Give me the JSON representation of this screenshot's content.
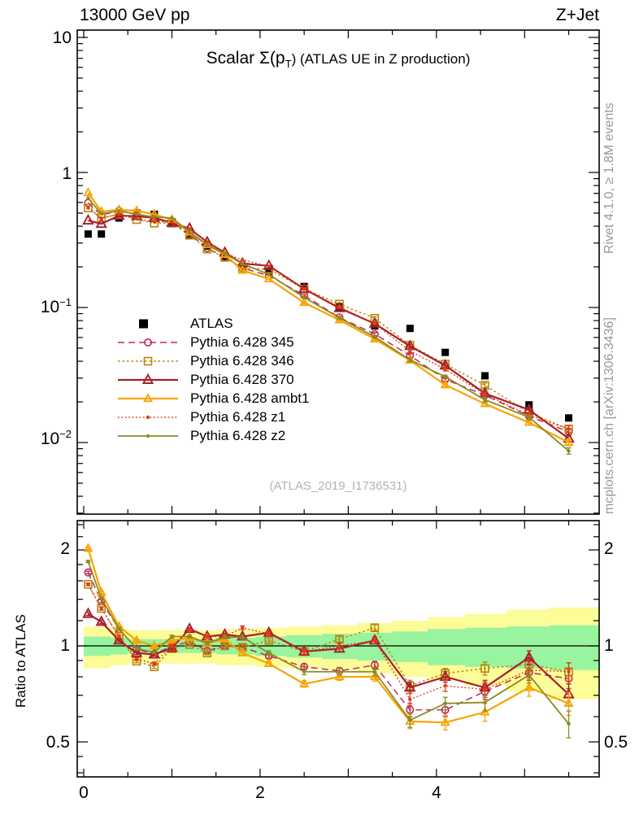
{
  "header": {
    "left": "13000 GeV pp",
    "right": "Z+Jet"
  },
  "title": {
    "prefix": "Scalar Σ(p",
    "sub": "T",
    "suffix": ") (ATLAS UE in Z production)"
  },
  "watermark": "(ATLAS_2019_I1736531)",
  "side_notes": {
    "top": "Rivet 4.1.0, ≥ 1.8M events",
    "bottom": "mcplots.cern.ch [arXiv:1306.3436]"
  },
  "ratio_ylabel": "Ratio to ATLAS",
  "axes": {
    "main_y_ticks": [
      {
        "base": "10",
        "exp": ""
      },
      {
        "base": "1",
        "exp": ""
      },
      {
        "base": "10",
        "exp": "−1"
      },
      {
        "base": "10",
        "exp": "−2"
      }
    ],
    "ratio_y_ticks": {
      "t2": "2",
      "t1": "1",
      "t05": "0.5"
    },
    "x_ticks": {
      "t0": "0",
      "t2": "2",
      "t4": "4"
    }
  },
  "colors": {
    "frame": "#000000",
    "band_green": "#98f49e",
    "band_yellow": "#fcfc98",
    "atlas": "#000000"
  },
  "chart_data": {
    "type": "line",
    "title": "Scalar Σ(p_T) (ATLAS UE in Z production)",
    "xlabel": "",
    "ylabel": "",
    "x_range": [
      0,
      5.84
    ],
    "main_y_log_range": [
      0.003,
      11.3
    ],
    "ratio_y_log_range": [
      0.39,
      2.47
    ],
    "x": [
      0.05,
      0.2,
      0.4,
      0.6,
      0.8,
      1.0,
      1.2,
      1.4,
      1.6,
      1.8,
      2.1,
      2.5,
      2.9,
      3.3,
      3.7,
      4.1,
      4.55,
      5.05,
      5.5
    ],
    "atlas": {
      "name": "ATLAS",
      "values": [
        0.35,
        0.35,
        0.46,
        0.5,
        0.49,
        0.43,
        0.34,
        0.285,
        0.235,
        0.198,
        0.185,
        0.143,
        0.101,
        0.073,
        0.07,
        0.0465,
        0.0312,
        0.019,
        0.0152
      ]
    },
    "series": [
      {
        "name": "Pythia 6.428 345",
        "color": "#c12b56",
        "marker": "circle",
        "dash": "8 5",
        "width": 1.5,
        "ratio": [
          1.7,
          1.38,
          1.13,
          0.98,
          0.94,
          1.0,
          1.03,
          0.965,
          1.0,
          0.99,
          0.93,
          0.86,
          0.835,
          0.87,
          0.63,
          0.63,
          0.72,
          0.825,
          0.79
        ]
      },
      {
        "name": "Pythia 6.428 346",
        "color": "#b8860b",
        "marker": "square",
        "dash": "2.5 3",
        "width": 1.5,
        "ratio": [
          1.56,
          1.31,
          1.07,
          0.895,
          0.86,
          0.98,
          1.01,
          0.95,
          1.0,
          0.99,
          1.04,
          0.96,
          1.05,
          1.14,
          0.75,
          0.82,
          0.85,
          0.875,
          0.83
        ]
      },
      {
        "name": "Pythia 6.428 370",
        "color": "#a81e2c",
        "marker": "triangle-lg",
        "dash": "",
        "width": 2.2,
        "ratio": [
          1.26,
          1.19,
          1.04,
          0.95,
          0.94,
          0.985,
          1.13,
          1.07,
          1.085,
          1.07,
          1.1,
          0.96,
          0.98,
          1.04,
          0.74,
          0.8,
          0.74,
          0.92,
          0.705
        ]
      },
      {
        "name": "Pythia 6.428 ambt1",
        "color": "#f6a400",
        "marker": "triangle",
        "dash": "",
        "width": 2.2,
        "ratio": [
          2.02,
          1.47,
          1.15,
          1.04,
          1.0,
          1.04,
          1.06,
          1.02,
          1.05,
          0.95,
          0.88,
          0.76,
          0.8,
          0.8,
          0.58,
          0.575,
          0.62,
          0.74,
          0.66
        ]
      },
      {
        "name": "Pythia 6.428 z1",
        "color": "#e23d17",
        "marker": "dot",
        "dash": "1.8 2.6",
        "width": 1.5,
        "ratio": [
          1.56,
          1.31,
          1.07,
          0.91,
          0.88,
          1.0,
          1.12,
          1.07,
          1.07,
          1.14,
          1.09,
          0.96,
          1.0,
          1.04,
          0.68,
          0.75,
          0.73,
          0.84,
          0.83
        ]
      },
      {
        "name": "Pythia 6.428 z2",
        "color": "#8b8b20",
        "marker": "dot",
        "dash": "",
        "width": 1.8,
        "ratio": [
          1.84,
          1.41,
          1.13,
          0.98,
          0.955,
          1.07,
          1.07,
          1.02,
          1.065,
          1.065,
          0.95,
          0.83,
          0.83,
          0.83,
          0.585,
          0.66,
          0.665,
          0.81,
          0.57
        ]
      }
    ],
    "ratio_err": [
      0.015,
      0.015,
      0.01,
      0.01,
      0.01,
      0.01,
      0.01,
      0.012,
      0.012,
      0.015,
      0.015,
      0.018,
      0.02,
      0.025,
      0.03,
      0.03,
      0.04,
      0.045,
      0.055
    ],
    "bands": {
      "yellow_lo": [
        0.85,
        0.85,
        0.87,
        0.88,
        0.88,
        0.88,
        0.88,
        0.88,
        0.87,
        0.87,
        0.86,
        0.85,
        0.84,
        0.82,
        0.8,
        0.78,
        0.75,
        0.72,
        0.68
      ],
      "yellow_hi": [
        1.15,
        1.15,
        1.13,
        1.12,
        1.12,
        1.12,
        1.12,
        1.12,
        1.13,
        1.13,
        1.14,
        1.15,
        1.16,
        1.18,
        1.2,
        1.23,
        1.26,
        1.3,
        1.32
      ],
      "green_lo": [
        0.93,
        0.93,
        0.94,
        0.95,
        0.95,
        0.95,
        0.95,
        0.95,
        0.94,
        0.94,
        0.93,
        0.92,
        0.91,
        0.9,
        0.89,
        0.87,
        0.86,
        0.85,
        0.84
      ],
      "green_hi": [
        1.07,
        1.07,
        1.06,
        1.05,
        1.05,
        1.05,
        1.05,
        1.05,
        1.06,
        1.06,
        1.07,
        1.08,
        1.09,
        1.1,
        1.11,
        1.13,
        1.14,
        1.15,
        1.16
      ]
    },
    "legend_position": "middle-left",
    "grid": false
  }
}
